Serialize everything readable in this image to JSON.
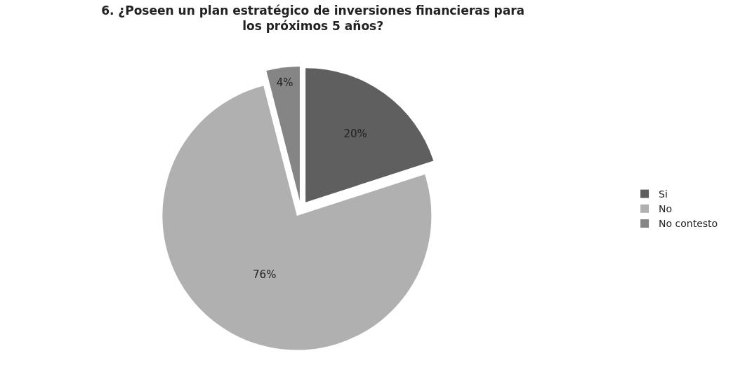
{
  "chart_data": {
    "type": "pie",
    "title": "6. ¿Poseen un plan estratégico de inversiones financieras para los próximos 5 años?",
    "categories": [
      "Si",
      "No",
      "No contesto"
    ],
    "values": [
      20,
      76,
      4
    ],
    "value_labels": [
      "20%",
      "76%",
      "4%"
    ],
    "colors": [
      "#5f5f5f",
      "#b0b0b0",
      "#858585"
    ],
    "legend": "right"
  }
}
